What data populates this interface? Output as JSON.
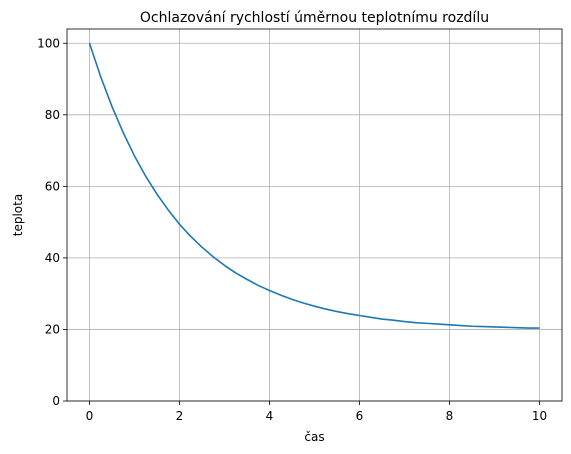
{
  "chart_data": {
    "type": "line",
    "title": "Ochlazování rychlostí úměrnou teplotnímu rozdílu",
    "xlabel": "čas",
    "ylabel": "teplota",
    "xlim": [
      -0.5,
      10.5
    ],
    "ylim": [
      0,
      103.99
    ],
    "x_ticks": [
      0,
      2,
      4,
      6,
      8,
      10
    ],
    "y_ticks": [
      0,
      20,
      40,
      60,
      80,
      100
    ],
    "grid": true,
    "series": [
      {
        "color": "#1f77b4",
        "x": [
          0,
          0.25,
          0.5,
          0.75,
          1,
          1.25,
          1.5,
          1.75,
          2,
          2.25,
          2.5,
          2.75,
          3,
          3.25,
          3.5,
          3.75,
          4,
          4.25,
          4.5,
          4.75,
          5,
          5.25,
          5.5,
          5.75,
          6,
          6.25,
          6.5,
          6.75,
          7,
          7.25,
          7.5,
          7.75,
          8,
          8.25,
          8.5,
          8.75,
          9,
          9.25,
          9.5,
          9.75,
          10
        ],
        "y": [
          100.0,
          90.6,
          82.3,
          75.0,
          68.5,
          62.8,
          57.8,
          53.4,
          49.4,
          46.0,
          43.0,
          40.3,
          37.9,
          35.8,
          34.0,
          32.3,
          30.9,
          29.6,
          28.4,
          27.4,
          26.5,
          25.7,
          25.0,
          24.4,
          23.9,
          23.4,
          22.9,
          22.6,
          22.2,
          21.9,
          21.7,
          21.5,
          21.3,
          21.1,
          20.9,
          20.8,
          20.7,
          20.6,
          20.5,
          20.4,
          20.4
        ]
      }
    ]
  }
}
